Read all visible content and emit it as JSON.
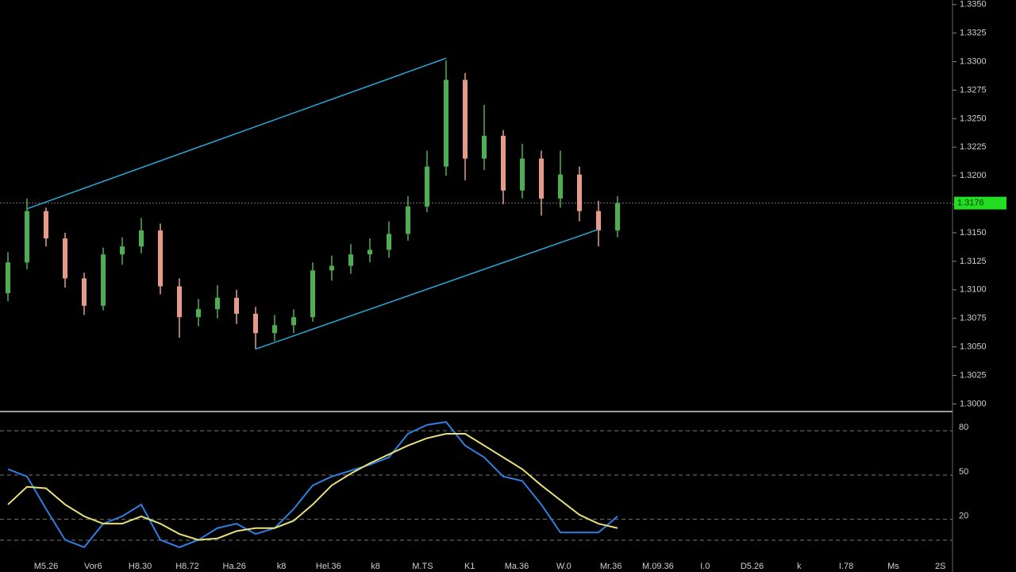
{
  "chart_data": [
    {
      "type": "candlestick",
      "open": [
        1.3097,
        1.3124,
        1.3169,
        1.3145,
        1.311,
        1.3086,
        1.3131,
        1.3138,
        1.3152,
        1.3103,
        1.3076,
        1.3083,
        1.3093,
        1.3079,
        1.3062,
        1.3069,
        1.3076,
        1.3117,
        1.3121,
        1.3131,
        1.3135,
        1.3149,
        1.3173,
        1.3208,
        1.3284,
        1.3215,
        1.3235,
        1.3187,
        1.3215,
        1.318,
        1.3201,
        1.3169,
        1.3152
      ],
      "high": [
        1.3133,
        1.318,
        1.3172,
        1.315,
        1.3115,
        1.3137,
        1.3146,
        1.3163,
        1.3158,
        1.311,
        1.3092,
        1.3104,
        1.31,
        1.3085,
        1.3078,
        1.3083,
        1.3124,
        1.313,
        1.314,
        1.3145,
        1.316,
        1.3182,
        1.3222,
        1.3301,
        1.329,
        1.3262,
        1.324,
        1.3228,
        1.3222,
        1.3222,
        1.3208,
        1.3178,
        1.3182
      ],
      "low": [
        1.309,
        1.3118,
        1.3138,
        1.3102,
        1.3078,
        1.3082,
        1.3122,
        1.3132,
        1.3096,
        1.3058,
        1.3068,
        1.3075,
        1.307,
        1.3048,
        1.3055,
        1.3062,
        1.3072,
        1.3108,
        1.3114,
        1.3124,
        1.3128,
        1.3143,
        1.3168,
        1.32,
        1.3196,
        1.3205,
        1.3175,
        1.318,
        1.3165,
        1.3172,
        1.316,
        1.3138,
        1.3146
      ],
      "close": [
        1.3124,
        1.3169,
        1.3145,
        1.311,
        1.3086,
        1.3131,
        1.3138,
        1.3152,
        1.3103,
        1.3076,
        1.3083,
        1.3093,
        1.3079,
        1.3062,
        1.3069,
        1.3076,
        1.3117,
        1.3121,
        1.3131,
        1.3135,
        1.3149,
        1.3173,
        1.3208,
        1.3284,
        1.3215,
        1.3235,
        1.3187,
        1.3215,
        1.318,
        1.3201,
        1.3169,
        1.3152,
        1.3176
      ],
      "up_color": "#4caf50",
      "down_color": "#e89a88",
      "ylim": [
        1.2994,
        1.3354
      ],
      "yticks": [
        {
          "value": 1.335,
          "label": "1.3350"
        },
        1.3325,
        {
          "value": 1.33,
          "label": "1.3300"
        },
        1.3275,
        {
          "value": 1.325,
          "label": "1.3250"
        },
        1.3225,
        {
          "value": 1.32,
          "label": "1.3200"
        },
        1.3175,
        {
          "value": 1.315,
          "label": "1.3150"
        },
        1.3125,
        {
          "value": 1.31,
          "label": "1.3100"
        },
        1.3075,
        {
          "value": 1.305,
          "label": "1.3050"
        },
        1.3025,
        {
          "value": 1.3,
          "label": "1.3000"
        }
      ],
      "current_price": 1.3176,
      "current_price_color": "#22dd22",
      "trendlines": [
        {
          "start": [
            1,
            1.3171
          ],
          "end": [
            23,
            1.3303
          ]
        },
        {
          "start": [
            13,
            1.3048
          ],
          "end": [
            31,
            1.3153
          ]
        }
      ],
      "trendline_color": "#29a8d8"
    },
    {
      "type": "line",
      "series": [
        {
          "color": "#2f7fe0",
          "values": [
            54,
            49,
            27,
            6,
            1,
            17,
            22,
            30,
            6,
            1,
            6,
            14,
            17,
            10,
            14,
            27,
            43,
            49,
            53,
            57,
            62,
            78,
            84,
            86,
            70,
            62,
            49,
            46,
            30,
            11,
            11,
            11,
            22
          ]
        },
        {
          "color": "#e8e07a",
          "values": [
            30,
            42,
            41,
            30,
            22,
            17,
            17,
            22,
            17,
            10,
            6,
            7,
            12,
            14,
            14,
            19,
            30,
            43,
            51,
            58,
            64,
            70,
            75,
            78,
            78,
            70,
            62,
            54,
            43,
            33,
            23,
            17,
            14
          ]
        }
      ],
      "ylim": [
        -5,
        92
      ],
      "yticks": [
        80,
        50,
        20
      ],
      "grid": true,
      "time_labels": [
        "M5.26",
        "Vor6",
        "H8.30",
        "H8.72",
        "Ha.26",
        "k8",
        "Hel.36",
        "k8",
        "M.TS",
        "K1",
        "Ma.36",
        "W.0",
        "Mr.36",
        "M.09.36",
        "I.0",
        "D5.26",
        "k",
        "I.78",
        "Ms",
        "2S"
      ]
    }
  ]
}
